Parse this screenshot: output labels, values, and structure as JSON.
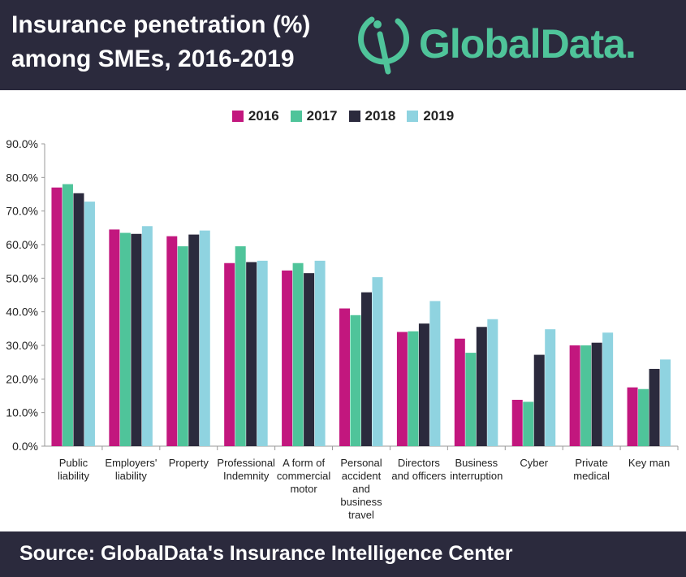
{
  "header": {
    "title": "Insurance penetration (%)\namong SMEs, 2016-2019",
    "logo_text": "GlobalData."
  },
  "colors": {
    "header_bg": "#2b2a3d",
    "brand_green": "#4fc49a",
    "series": [
      "#c2177e",
      "#4fc49a",
      "#2b2a3d",
      "#8fd3e0"
    ]
  },
  "footer": {
    "source": "Source:  GlobalData's Insurance Intelligence Center"
  },
  "chart_data": {
    "type": "bar",
    "title": "Insurance penetration (%) among SMEs, 2016-2019",
    "ylim": [
      0,
      90
    ],
    "y_ticks": [
      "0.0%",
      "10.0%",
      "20.0%",
      "30.0%",
      "40.0%",
      "50.0%",
      "60.0%",
      "70.0%",
      "80.0%",
      "90.0%"
    ],
    "legend_position": "top-center",
    "grid": false,
    "categories": [
      "Public\nliability",
      "Employers'\nliability",
      "Property",
      "Professional\nIndemnity",
      "A form of\ncommercial\nmotor",
      "Personal\naccident\nand\nbusiness\ntravel",
      "Directors\nand officers",
      "Business\ninterruption",
      "Cyber",
      "Private\nmedical",
      "Key man"
    ],
    "series": [
      {
        "name": "2016",
        "values": [
          77.0,
          64.5,
          62.5,
          54.5,
          52.3,
          41.0,
          34.0,
          32.0,
          13.8,
          30.0,
          17.5
        ]
      },
      {
        "name": "2017",
        "values": [
          78.0,
          63.5,
          59.5,
          59.5,
          54.5,
          39.0,
          34.2,
          27.8,
          13.2,
          30.0,
          17.0
        ]
      },
      {
        "name": "2018",
        "values": [
          75.3,
          63.2,
          63.0,
          54.8,
          51.5,
          45.8,
          36.5,
          35.5,
          27.2,
          30.8,
          23.0
        ]
      },
      {
        "name": "2019",
        "values": [
          72.8,
          65.5,
          64.2,
          55.2,
          55.2,
          50.3,
          43.2,
          37.8,
          34.8,
          33.8,
          25.8
        ]
      }
    ]
  }
}
